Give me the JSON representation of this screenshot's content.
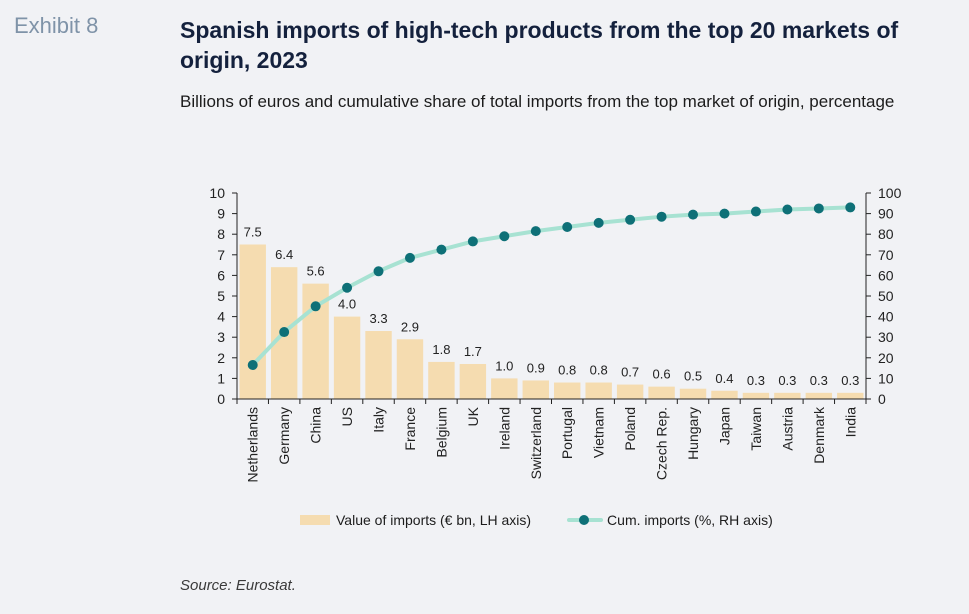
{
  "header": {
    "exhibit": "Exhibit 8",
    "title": "Spanish imports of high-tech products from the top 20 markets of origin, 2023",
    "subtitle": "Billions of euros and cumulative share of total imports from the top market of origin, percentage"
  },
  "footer": {
    "source": "Source: Eurostat."
  },
  "colors": {
    "bar": "#f5dcb0",
    "line": "#a7e2d2",
    "marker": "#0e7077",
    "axis": "#222222"
  },
  "chart_data": {
    "type": "bar",
    "categories": [
      "Netherlands",
      "Germany",
      "China",
      "US",
      "Italy",
      "France",
      "Belgium",
      "UK",
      "Ireland",
      "Switzerland",
      "Portugal",
      "Vietnam",
      "Poland",
      "Czech Rep.",
      "Hungary",
      "Japan",
      "Taiwan",
      "Austria",
      "Denmark",
      "India"
    ],
    "series": [
      {
        "name": "Value of imports (€ bn, LH axis)",
        "type": "bar",
        "axis": "left",
        "values": [
          7.5,
          6.4,
          5.6,
          4.0,
          3.3,
          2.9,
          1.8,
          1.7,
          1.0,
          0.9,
          0.8,
          0.8,
          0.7,
          0.6,
          0.5,
          0.4,
          0.3,
          0.3,
          0.3,
          0.3
        ],
        "labels": [
          "7.5",
          "6.4",
          "5.6",
          "4.0",
          "3.3",
          "2.9",
          "1.8",
          "1.7",
          "1.0",
          "0.9",
          "0.8",
          "0.8",
          "0.7",
          "0.6",
          "0.5",
          "0.4",
          "0.3",
          "0.3",
          "0.3",
          "0.3"
        ]
      },
      {
        "name": "Cum. imports (%, RH axis)",
        "type": "line",
        "axis": "right",
        "values": [
          16.5,
          32.5,
          45,
          54,
          62,
          68.5,
          72.5,
          76.5,
          79,
          81.5,
          83.5,
          85.5,
          87,
          88.5,
          89.5,
          90,
          91,
          92,
          92.5,
          93
        ]
      }
    ],
    "ylim_left": [
      0,
      10
    ],
    "yticks_left": [
      "0",
      "1",
      "2",
      "3",
      "4",
      "5",
      "6",
      "7",
      "8",
      "9",
      "10"
    ],
    "ylim_right": [
      0,
      100
    ],
    "yticks_right": [
      "0",
      "10",
      "20",
      "30",
      "40",
      "50",
      "60",
      "70",
      "80",
      "90",
      "100"
    ],
    "legend_position": "bottom"
  }
}
